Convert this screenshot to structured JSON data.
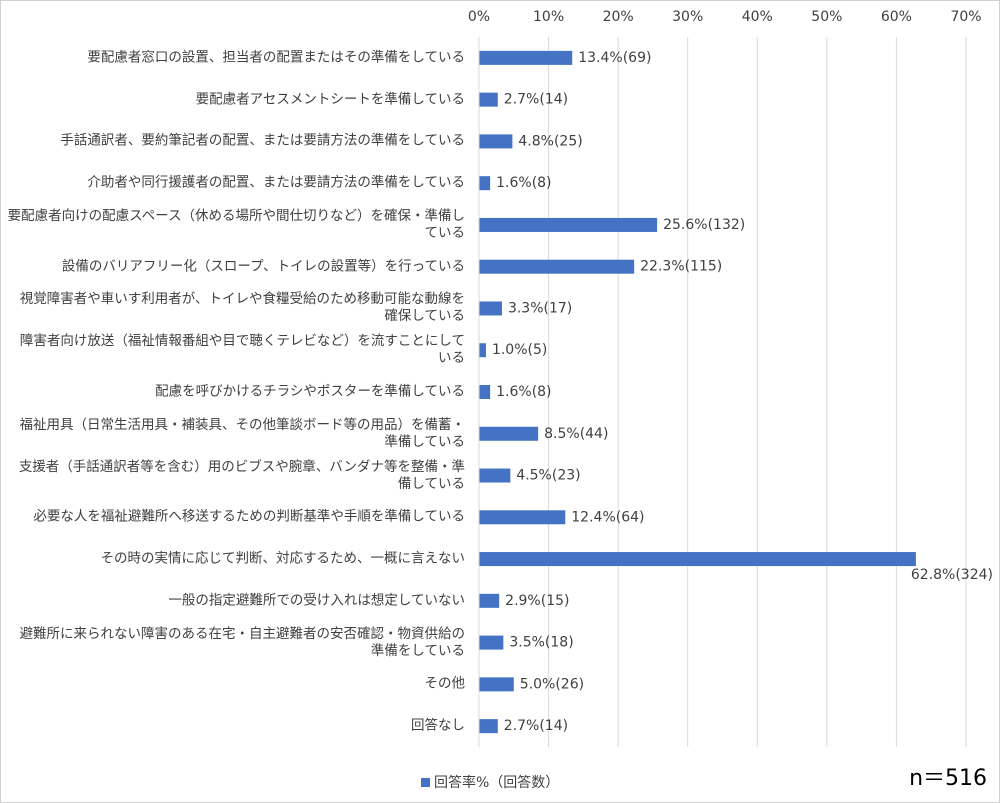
{
  "chart_data": {
    "type": "bar",
    "orientation": "horizontal",
    "categories": [
      "要配慮者窓口の設置、担当者の配置またはその準備をしている",
      "要配慮者アセスメントシートを準備している",
      "手話通訳者、要約筆記者の配置、または要請方法の準備をしている",
      "介助者や同行援護者の配置、または要請方法の準備をしている",
      "要配慮者向けの配慮スペース（休める場所や間仕切りなど）を確保・準備している",
      "設備のバリアフリー化（スロープ、トイレの設置等）を行っている",
      "視覚障害者や車いす利用者が、トイレや食糧受給のため移動可能な動線を確保している",
      "障害者向け放送（福祉情報番組や目で聴くテレビなど）を流すことにしている",
      "配慮を呼びかけるチラシやポスターを準備している",
      "福祉用具（日常生活用具・補装具、その他筆談ボード等の用品）を備蓄・準備している",
      "支援者（手話通訳者等を含む）用のビブスや腕章、バンダナ等を整備・準備している",
      "必要な人を福祉避難所へ移送するための判断基準や手順を準備している",
      "その時の実情に応じて判断、対応するため、一概に言えない",
      "一般の指定避難所での受け入れは想定していない",
      "避難所に来られない障害のある在宅・自主避難者の安否確認・物資供給の準備をしている",
      "その他",
      "回答なし"
    ],
    "series": [
      {
        "name": "回答率%（回答数）",
        "color": "#4472c4",
        "values": [
          13.4,
          2.7,
          4.8,
          1.6,
          25.6,
          22.3,
          3.3,
          1.0,
          1.6,
          8.5,
          4.5,
          12.4,
          62.8,
          2.9,
          3.5,
          5.0,
          2.7
        ],
        "value_labels": [
          "13.4%(69)",
          "2.7%(14)",
          "4.8%(25)",
          "1.6%(8)",
          "25.6%(132)",
          "22.3%(115)",
          "3.3%(17)",
          "1.0%(5)",
          "1.6%(8)",
          "8.5%(44)",
          "4.5%(23)",
          "12.4%(64)",
          "62.8%(324)",
          "2.9%(15)",
          "3.5%(18)",
          "5.0%(26)",
          "2.7%(14)"
        ]
      }
    ],
    "xlim": [
      0,
      70
    ],
    "xticks": [
      {
        "value": 0,
        "label": "0%"
      },
      {
        "value": 10,
        "label": "10%"
      },
      {
        "value": 20,
        "label": "20%"
      },
      {
        "value": 30,
        "label": "30%"
      },
      {
        "value": 40,
        "label": "40%"
      },
      {
        "value": 50,
        "label": "50%"
      },
      {
        "value": 60,
        "label": "60%"
      },
      {
        "value": 70,
        "label": "70%"
      }
    ],
    "grid": true,
    "legend": "bottom",
    "annotation": "n＝516"
  }
}
